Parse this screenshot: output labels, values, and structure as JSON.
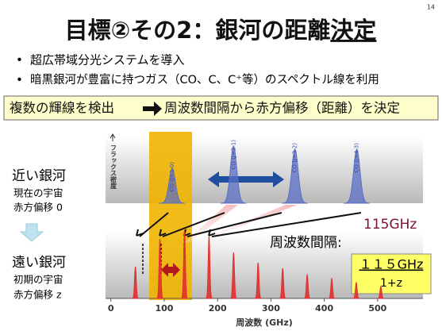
{
  "page_number": "14",
  "title": {
    "main": "目標②その2：銀河の距離",
    "emphasis": "決定"
  },
  "bullets": [
    "超広帯域分光システムを導入",
    "暗黒銀河が豊富に持つガス（CO、C、C⁺等）のスペクトル線を利用"
  ],
  "banner": {
    "left": "複数の輝線を検出",
    "right": "周波数間隔から赤方偏移（距離）を決定"
  },
  "near": {
    "label": "近い銀河",
    "desc1": "現在の宇宙",
    "desc2": "赤方偏移 0"
  },
  "far": {
    "label": "遠い銀河",
    "desc1": "初期の宇宙",
    "desc2": "赤方偏移 z"
  },
  "annotation": {
    "freq": "115GHz",
    "spacing": "周波数間隔:",
    "formula_top": "１１５GHz",
    "formula_bottom": "1+z"
  },
  "chart_data": {
    "type": "spectrum",
    "x_label": "周波数 (GHz)",
    "y_label": "フラックス密度",
    "xlim": [
      -10,
      585
    ],
    "xticks": [
      0,
      100,
      200,
      300,
      400,
      500
    ],
    "ylim": [
      0,
      100
    ],
    "series": [
      {
        "color": "#5b6fc4",
        "x": [
          115,
          230,
          345,
          461
        ],
        "values": [
          55,
          90,
          85,
          85
        ],
        "labels": [
          "CO (J=1-0)",
          "CO (J=2-1)",
          "CO (J=3-2)",
          "CO (J=4-3)"
        ]
      },
      {
        "color": "#e0302f",
        "x": [
          46,
          92,
          138,
          184,
          230,
          276,
          322,
          368,
          414,
          460,
          506
        ],
        "values": [
          40,
          75,
          85,
          78,
          58,
          45,
          38,
          30,
          25,
          20,
          15
        ]
      }
    ]
  }
}
